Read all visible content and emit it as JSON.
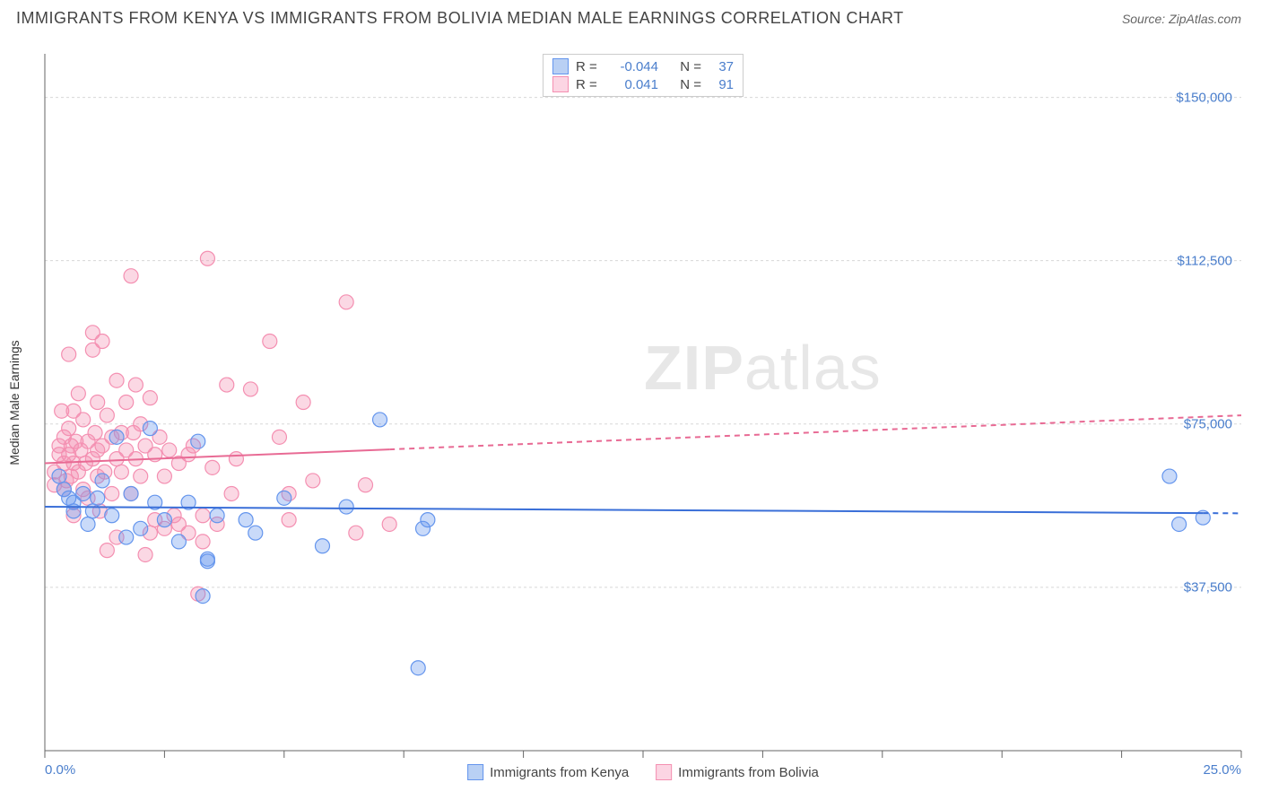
{
  "title": "IMMIGRANTS FROM KENYA VS IMMIGRANTS FROM BOLIVIA MEDIAN MALE EARNINGS CORRELATION CHART",
  "source_label": "Source: ZipAtlas.com",
  "watermark": {
    "bold": "ZIP",
    "rest": "atlas"
  },
  "y_axis": {
    "label": "Median Male Earnings",
    "min": 0,
    "max": 160000,
    "gridlines": [
      37500,
      75000,
      112500,
      150000
    ],
    "tick_labels": [
      "$37,500",
      "$75,000",
      "$112,500",
      "$150,000"
    ]
  },
  "x_axis": {
    "min": 0,
    "max": 25,
    "ticks": [
      0,
      2.5,
      5,
      7.5,
      10,
      12.5,
      15,
      17.5,
      20,
      22.5,
      25
    ],
    "left_label": "0.0%",
    "right_label": "25.0%"
  },
  "series": [
    {
      "name": "Immigrants from Kenya",
      "color_fill": "rgba(100,149,237,0.35)",
      "color_stroke": "#6495ed",
      "swatch_fill": "#b9d0f4",
      "swatch_border": "#6495ed",
      "r_value": "-0.044",
      "n_value": "37",
      "trend": {
        "y_start": 56000,
        "y_end": 54500,
        "solid_until_x": 24.2,
        "color": "#3a6fd8"
      },
      "points": [
        [
          0.3,
          63000
        ],
        [
          0.4,
          60000
        ],
        [
          0.5,
          58000
        ],
        [
          0.6,
          55000
        ],
        [
          0.6,
          57000
        ],
        [
          0.8,
          59000
        ],
        [
          0.9,
          52000
        ],
        [
          1.1,
          58000
        ],
        [
          1.0,
          55000
        ],
        [
          1.2,
          62000
        ],
        [
          1.4,
          54000
        ],
        [
          1.5,
          72000
        ],
        [
          1.7,
          49000
        ],
        [
          1.8,
          59000
        ],
        [
          2.0,
          51000
        ],
        [
          2.2,
          74000
        ],
        [
          2.3,
          57000
        ],
        [
          2.5,
          53000
        ],
        [
          2.8,
          48000
        ],
        [
          3.0,
          57000
        ],
        [
          3.2,
          71000
        ],
        [
          3.3,
          35500
        ],
        [
          3.4,
          44000
        ],
        [
          3.4,
          43500
        ],
        [
          3.6,
          54000
        ],
        [
          4.2,
          53000
        ],
        [
          4.4,
          50000
        ],
        [
          5.0,
          58000
        ],
        [
          5.8,
          47000
        ],
        [
          6.3,
          56000
        ],
        [
          7.0,
          76000
        ],
        [
          7.8,
          19000
        ],
        [
          7.9,
          51000
        ],
        [
          8.0,
          53000
        ],
        [
          23.5,
          63000
        ],
        [
          23.7,
          52000
        ],
        [
          24.2,
          53500
        ]
      ]
    },
    {
      "name": "Immigrants from Bolivia",
      "color_fill": "rgba(244,143,177,0.35)",
      "color_stroke": "#f48fb1",
      "swatch_fill": "#fcd5e3",
      "swatch_border": "#f48fb1",
      "r_value": "0.041",
      "n_value": "91",
      "trend": {
        "y_start": 66000,
        "y_end": 77000,
        "solid_until_x": 7.2,
        "color": "#e86a94"
      },
      "points": [
        [
          0.2,
          64000
        ],
        [
          0.2,
          61000
        ],
        [
          0.3,
          70000
        ],
        [
          0.3,
          68000
        ],
        [
          0.35,
          78000
        ],
        [
          0.4,
          66000
        ],
        [
          0.4,
          60000
        ],
        [
          0.4,
          72000
        ],
        [
          0.45,
          62000
        ],
        [
          0.5,
          91000
        ],
        [
          0.5,
          74000
        ],
        [
          0.5,
          68000
        ],
        [
          0.55,
          63000
        ],
        [
          0.55,
          70000
        ],
        [
          0.6,
          78000
        ],
        [
          0.6,
          66000
        ],
        [
          0.6,
          54000
        ],
        [
          0.65,
          71000
        ],
        [
          0.7,
          64000
        ],
        [
          0.7,
          82000
        ],
        [
          0.75,
          69000
        ],
        [
          0.8,
          60000
        ],
        [
          0.8,
          76000
        ],
        [
          0.85,
          66000
        ],
        [
          0.9,
          71000
        ],
        [
          0.9,
          58000
        ],
        [
          1.0,
          92000
        ],
        [
          1.0,
          67000
        ],
        [
          1.0,
          96000
        ],
        [
          1.05,
          73000
        ],
        [
          1.1,
          63000
        ],
        [
          1.1,
          80000
        ],
        [
          1.1,
          69000
        ],
        [
          1.15,
          55000
        ],
        [
          1.2,
          94000
        ],
        [
          1.2,
          70000
        ],
        [
          1.25,
          64000
        ],
        [
          1.3,
          77000
        ],
        [
          1.3,
          46000
        ],
        [
          1.4,
          72000
        ],
        [
          1.4,
          59000
        ],
        [
          1.5,
          85000
        ],
        [
          1.5,
          67000
        ],
        [
          1.5,
          49000
        ],
        [
          1.6,
          73000
        ],
        [
          1.6,
          64000
        ],
        [
          1.7,
          80000
        ],
        [
          1.7,
          69000
        ],
        [
          1.8,
          109000
        ],
        [
          1.8,
          59000
        ],
        [
          1.85,
          73000
        ],
        [
          1.9,
          67000
        ],
        [
          1.9,
          84000
        ],
        [
          2.0,
          63000
        ],
        [
          2.0,
          75000
        ],
        [
          2.1,
          45000
        ],
        [
          2.1,
          70000
        ],
        [
          2.2,
          81000
        ],
        [
          2.2,
          50000
        ],
        [
          2.3,
          68000
        ],
        [
          2.3,
          53000
        ],
        [
          2.4,
          72000
        ],
        [
          2.5,
          63000
        ],
        [
          2.5,
          51000
        ],
        [
          2.6,
          69000
        ],
        [
          2.7,
          54000
        ],
        [
          2.8,
          66000
        ],
        [
          2.8,
          52000
        ],
        [
          3.0,
          68000
        ],
        [
          3.0,
          50000
        ],
        [
          3.1,
          70000
        ],
        [
          3.2,
          36000
        ],
        [
          3.3,
          54000
        ],
        [
          3.3,
          48000
        ],
        [
          3.4,
          113000
        ],
        [
          3.5,
          65000
        ],
        [
          3.6,
          52000
        ],
        [
          3.8,
          84000
        ],
        [
          3.9,
          59000
        ],
        [
          4.0,
          67000
        ],
        [
          4.3,
          83000
        ],
        [
          4.7,
          94000
        ],
        [
          4.9,
          72000
        ],
        [
          5.1,
          59000
        ],
        [
          5.1,
          53000
        ],
        [
          5.4,
          80000
        ],
        [
          5.6,
          62000
        ],
        [
          6.3,
          103000
        ],
        [
          6.5,
          50000
        ],
        [
          6.7,
          61000
        ],
        [
          7.2,
          52000
        ]
      ]
    }
  ],
  "legend_top": {
    "r_label": "R =",
    "n_label": "N ="
  },
  "marker_radius": 8,
  "grid_color": "#d8d8d8",
  "axis_color": "#666666",
  "background_color": "#ffffff",
  "trend_line_width": 2
}
